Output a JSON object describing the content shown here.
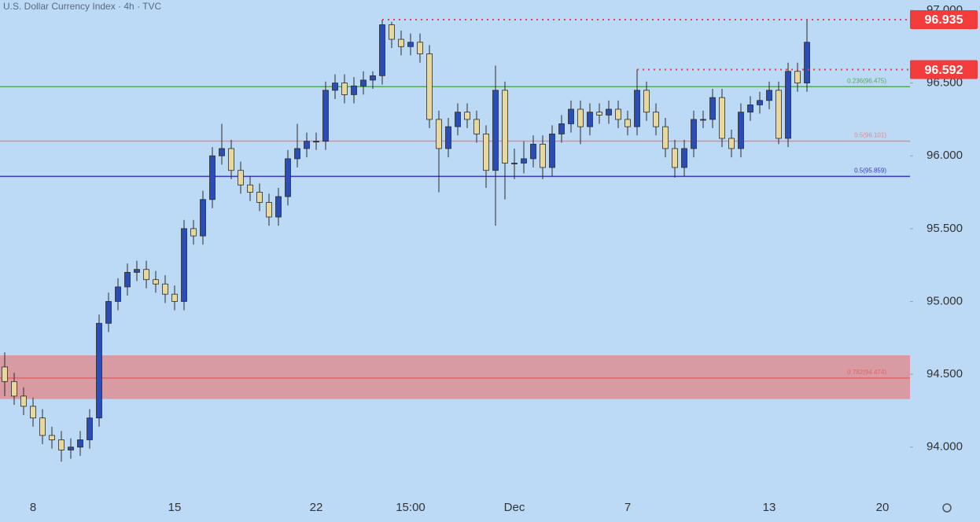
{
  "chart_data": {
    "type": "candlestick",
    "title": "U.S. Dollar Currency Index · 4h · TVC",
    "categories": [
      null,
      null,
      null,
      "8",
      null,
      null,
      null,
      null,
      null,
      null,
      null,
      null,
      null,
      null,
      null,
      null,
      null,
      null,
      "15",
      null,
      null,
      null,
      null,
      null,
      null,
      null,
      null,
      null,
      null,
      null,
      null,
      null,
      null,
      "22",
      null,
      null,
      null,
      null,
      null,
      null,
      null,
      null,
      null,
      "15:00",
      null,
      null,
      null,
      null,
      null,
      null,
      null,
      null,
      null,
      null,
      "Dec",
      null,
      null,
      null,
      null,
      null,
      null,
      null,
      null,
      null,
      null,
      null,
      "7",
      null,
      null,
      null,
      null,
      null,
      null,
      null,
      null,
      null,
      null,
      null,
      null,
      null,
      null,
      "13",
      null,
      null,
      null,
      null,
      null,
      null,
      null,
      null,
      null,
      null,
      null,
      "20"
    ],
    "open": [
      94.55,
      94.45,
      94.35,
      94.28,
      94.2,
      94.08,
      94.05,
      93.98,
      94.0,
      94.05,
      94.2,
      94.85,
      95.0,
      95.1,
      95.2,
      95.22,
      95.15,
      95.12,
      95.05,
      95.0,
      95.5,
      95.45,
      95.7,
      96.0,
      96.05,
      95.9,
      95.8,
      95.75,
      95.68,
      95.58,
      95.72,
      95.98,
      96.05,
      96.1,
      96.1,
      96.45,
      96.5,
      96.42,
      96.48,
      96.52,
      96.55,
      96.9,
      96.8,
      96.75,
      96.78,
      96.7,
      96.25,
      96.05,
      96.2,
      96.3,
      96.25,
      96.15,
      95.9,
      96.45,
      95.95,
      95.95,
      95.98,
      96.08,
      95.92,
      96.15,
      96.22,
      96.32,
      96.2,
      96.3,
      96.28,
      96.32,
      96.25,
      96.2,
      96.45,
      96.3,
      96.2,
      96.05,
      95.92,
      96.05,
      96.25,
      96.25,
      96.4,
      96.12,
      96.05,
      96.3,
      96.35,
      96.38,
      96.45,
      96.12,
      96.58,
      96.5,
      null,
      null,
      null,
      null,
      null,
      null,
      null,
      null
    ],
    "high": [
      94.65,
      94.51,
      94.41,
      94.34,
      94.26,
      94.14,
      94.11,
      94.06,
      94.11,
      94.26,
      94.91,
      95.06,
      95.16,
      95.26,
      95.28,
      95.28,
      95.21,
      95.18,
      95.11,
      95.56,
      95.56,
      95.76,
      96.06,
      96.22,
      96.11,
      95.96,
      95.86,
      95.81,
      95.74,
      95.78,
      96.04,
      96.22,
      96.16,
      96.16,
      96.51,
      96.56,
      96.56,
      96.54,
      96.58,
      96.58,
      96.935,
      96.92,
      96.86,
      96.84,
      96.84,
      96.76,
      96.31,
      96.26,
      96.36,
      96.36,
      96.31,
      96.21,
      96.62,
      96.51,
      96.05,
      96.1,
      96.14,
      96.14,
      96.21,
      96.28,
      96.38,
      96.38,
      96.36,
      96.36,
      96.38,
      96.38,
      96.31,
      96.592,
      96.51,
      96.36,
      96.26,
      96.11,
      96.11,
      96.31,
      96.31,
      96.46,
      96.46,
      96.18,
      96.36,
      96.41,
      96.44,
      96.51,
      96.51,
      96.64,
      96.64,
      96.935,
      null,
      null,
      null,
      null,
      null,
      null,
      null,
      null
    ],
    "low": [
      94.35,
      94.29,
      94.22,
      94.14,
      94.02,
      93.99,
      93.9,
      93.92,
      93.94,
      93.99,
      94.14,
      94.79,
      94.94,
      95.04,
      95.14,
      95.09,
      95.06,
      94.99,
      94.94,
      94.94,
      95.39,
      95.39,
      95.64,
      95.94,
      95.84,
      95.74,
      95.69,
      95.62,
      95.52,
      95.52,
      95.66,
      95.92,
      95.99,
      96.04,
      96.04,
      96.39,
      96.36,
      96.36,
      96.42,
      96.46,
      96.49,
      96.74,
      96.69,
      96.69,
      96.64,
      96.19,
      95.75,
      95.99,
      96.14,
      96.19,
      96.09,
      95.78,
      95.52,
      95.7,
      95.84,
      95.88,
      95.92,
      95.84,
      95.86,
      96.09,
      96.16,
      96.08,
      96.14,
      96.22,
      96.22,
      96.19,
      96.14,
      96.14,
      96.24,
      96.14,
      95.99,
      95.85,
      95.86,
      95.99,
      96.19,
      96.19,
      96.06,
      95.99,
      95.99,
      96.24,
      96.29,
      96.32,
      96.08,
      96.06,
      96.44,
      96.44,
      null,
      null,
      null,
      null,
      null,
      null,
      null,
      null
    ],
    "close": [
      94.45,
      94.35,
      94.28,
      94.2,
      94.08,
      94.05,
      93.98,
      94.0,
      94.05,
      94.2,
      94.85,
      95.0,
      95.1,
      95.2,
      95.22,
      95.15,
      95.12,
      95.05,
      95.0,
      95.5,
      95.45,
      95.7,
      96.0,
      96.05,
      95.9,
      95.8,
      95.75,
      95.68,
      95.58,
      95.72,
      95.98,
      96.05,
      96.1,
      96.1,
      96.45,
      96.5,
      96.42,
      96.48,
      96.52,
      96.55,
      96.9,
      96.8,
      96.75,
      96.78,
      96.7,
      96.25,
      96.05,
      96.2,
      96.3,
      96.25,
      96.15,
      95.9,
      96.45,
      95.95,
      95.95,
      95.98,
      96.08,
      95.92,
      96.15,
      96.22,
      96.32,
      96.2,
      96.3,
      96.28,
      96.32,
      96.25,
      96.2,
      96.45,
      96.3,
      96.2,
      96.05,
      95.92,
      96.05,
      96.25,
      96.25,
      96.4,
      96.12,
      96.05,
      96.3,
      96.35,
      96.38,
      96.45,
      96.12,
      96.58,
      96.5,
      96.78,
      null,
      null,
      null,
      null,
      null,
      null,
      null,
      null
    ],
    "up_color": "#2a4db8",
    "down_color": "#e9d89c",
    "ylim": [
      93.68,
      97.07
    ],
    "yticks": [
      {
        "value": 94,
        "label": "94.000"
      },
      {
        "value": 94.5,
        "label": "94.500"
      },
      {
        "value": 95,
        "label": "95.000"
      },
      {
        "value": 95.5,
        "label": "95.500"
      },
      {
        "value": 96,
        "label": "96.000"
      },
      {
        "value": 96.5,
        "label": "96.500"
      },
      {
        "value": 97,
        "label": "97.000"
      }
    ],
    "zone": {
      "from": 94.33,
      "to": 94.63,
      "color": "#d89aa3"
    },
    "levels": [
      {
        "label": "0.236(96.475)",
        "value": 96.475,
        "color": "#55a85a"
      },
      {
        "label": "0.5(96.101)",
        "value": 96.101,
        "color": "#e58a8a"
      },
      {
        "label": "0.5(95.859)",
        "value": 95.859,
        "color": "#3a3ab0"
      },
      {
        "label": "0.782(94.474)",
        "value": 94.474,
        "color": "#e06666"
      }
    ],
    "markers": [
      {
        "label": "96.935",
        "value": 96.935,
        "color": "#f23b3b"
      },
      {
        "label": "96.592",
        "value": 96.592,
        "color": "#f23b3b"
      }
    ]
  }
}
